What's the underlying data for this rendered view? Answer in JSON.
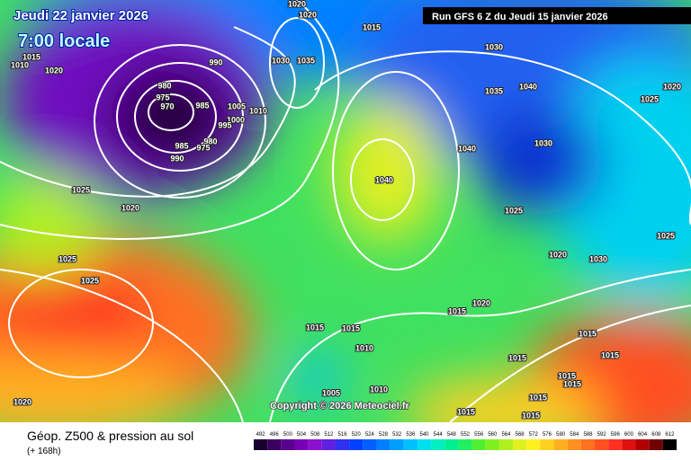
{
  "header": {
    "date": "Jeudi 22 janvier 2026",
    "time": "7:00 locale",
    "run": "Run GFS 6 Z du Jeudi 15 janvier 2026"
  },
  "copyright": "Copyright © 2026 Meteociel.fr",
  "footer": {
    "title": "Géop. Z500 & pression au sol",
    "lead": "(+ 168h)"
  },
  "isobar_labels": [
    1020,
    1020,
    1015,
    1015,
    1010,
    1020,
    990,
    980,
    975,
    970,
    985,
    1005,
    1000,
    995,
    985,
    990,
    980,
    975,
    1010,
    1030,
    1035,
    1040,
    1025,
    1020,
    1040,
    1030,
    1040,
    1025,
    1020,
    1025,
    1025,
    1025,
    1025,
    1020,
    1030,
    1015,
    1020,
    1015,
    1015,
    1010,
    1015,
    1015,
    1015,
    1005,
    1010,
    1015,
    1015,
    1015,
    1015,
    1015,
    1020,
    1030,
    1035
  ],
  "legend": {
    "labels": [
      492,
      496,
      500,
      504,
      508,
      512,
      516,
      520,
      524,
      528,
      532,
      536,
      540,
      544,
      548,
      552,
      556,
      560,
      564,
      568,
      572,
      576,
      580,
      584,
      588,
      592,
      596,
      600,
      604,
      608,
      612
    ],
    "colors": [
      "#1a0030",
      "#3c0060",
      "#5a0090",
      "#7800b4",
      "#8c10d0",
      "#6020e0",
      "#3030f0",
      "#0040ff",
      "#0060ff",
      "#0080ff",
      "#00a0ff",
      "#00c0ff",
      "#00e0f0",
      "#00f0c0",
      "#00f090",
      "#20f060",
      "#50f030",
      "#80f020",
      "#b0f020",
      "#e0f020",
      "#fff020",
      "#ffd020",
      "#ffb020",
      "#ff9020",
      "#ff7020",
      "#ff5020",
      "#ff3020",
      "#e01010",
      "#b00000",
      "#700000",
      "#000000"
    ]
  }
}
